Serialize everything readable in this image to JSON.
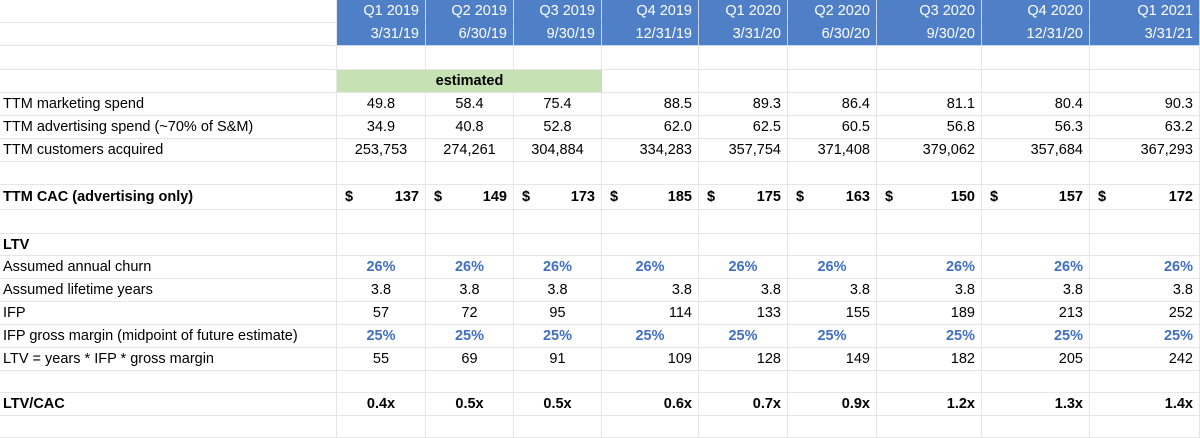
{
  "header": {
    "quarters": [
      "Q1 2019",
      "Q2 2019",
      "Q3 2019",
      "Q4 2019",
      "Q1 2020",
      "Q2 2020",
      "Q3 2020",
      "Q4 2020",
      "Q1 2021"
    ],
    "dates": [
      "3/31/19",
      "6/30/19",
      "9/30/19",
      "12/31/19",
      "3/31/20",
      "6/30/20",
      "9/30/20",
      "12/31/20",
      "3/31/21"
    ]
  },
  "estimated_label": "estimated",
  "rows": {
    "marketing": {
      "label": "TTM marketing spend",
      "values": [
        "49.8",
        "58.4",
        "75.4",
        "88.5",
        "89.3",
        "86.4",
        "81.1",
        "80.4",
        "90.3"
      ]
    },
    "advertising": {
      "label": "TTM advertising spend (~70% of S&M)",
      "values": [
        "34.9",
        "40.8",
        "52.8",
        "62.0",
        "62.5",
        "60.5",
        "56.8",
        "56.3",
        "63.2"
      ]
    },
    "customers": {
      "label": "TTM customers acquired",
      "values": [
        "253,753",
        "274,261",
        "304,884",
        "334,283",
        "357,754",
        "371,408",
        "379,062",
        "357,684",
        "367,293"
      ]
    },
    "cac": {
      "label": "TTM CAC (advertising only)",
      "currency": "$",
      "values": [
        "137",
        "149",
        "173",
        "185",
        "175",
        "163",
        "150",
        "157",
        "172"
      ]
    },
    "ltv_heading": {
      "label": "LTV"
    },
    "churn": {
      "label": "Assumed annual churn",
      "values": [
        "26%",
        "26%",
        "26%",
        "26%",
        "26%",
        "26%",
        "26%",
        "26%",
        "26%"
      ]
    },
    "lifetime": {
      "label": "Assumed lifetime years",
      "values": [
        "3.8",
        "3.8",
        "3.8",
        "3.8",
        "3.8",
        "3.8",
        "3.8",
        "3.8",
        "3.8"
      ]
    },
    "ifp": {
      "label": "IFP",
      "values": [
        "57",
        "72",
        "95",
        "114",
        "133",
        "155",
        "189",
        "213",
        "252"
      ]
    },
    "gross_margin": {
      "label": "IFP gross margin (midpoint of future estimate)",
      "values": [
        "25%",
        "25%",
        "25%",
        "25%",
        "25%",
        "25%",
        "25%",
        "25%",
        "25%"
      ]
    },
    "ltv": {
      "label": "LTV = years * IFP * gross margin",
      "values": [
        "55",
        "69",
        "91",
        "109",
        "128",
        "149",
        "182",
        "205",
        "242"
      ]
    },
    "ltv_cac": {
      "label": "LTV/CAC",
      "values": [
        "0.4x",
        "0.5x",
        "0.5x",
        "0.6x",
        "0.7x",
        "0.9x",
        "1.2x",
        "1.3x",
        "1.4x"
      ]
    }
  },
  "colors": {
    "header_bg": "#4f7fc6",
    "estimated_bg": "#c6e2b5",
    "input_blue": "#4170c1"
  }
}
